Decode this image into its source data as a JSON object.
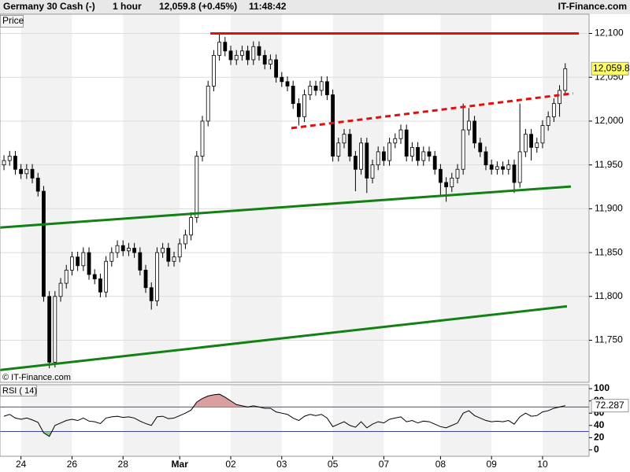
{
  "chart_data": {
    "type": "candlestick",
    "title": "Germany 30 Cash (-)",
    "interval": "1 hour",
    "quote": "12,059.8 (+0.45%)",
    "time": "11:48:42",
    "source": "IT-Finance.com",
    "pane_label": "Price",
    "watermark": "© IT-Finance.com",
    "up_color": "#ffffff",
    "down_color": "#000000",
    "candles": [
      [
        11950,
        11961,
        11944,
        11955
      ],
      [
        11955,
        11966,
        11949,
        11960
      ],
      [
        11960,
        11966,
        11939,
        11945
      ],
      [
        11945,
        11951,
        11934,
        11940
      ],
      [
        11940,
        11951,
        11934,
        11945
      ],
      [
        11945,
        11951,
        11929,
        11935
      ],
      [
        11935,
        11941,
        11914,
        11920
      ],
      [
        11920,
        11926,
        11794,
        11800
      ],
      [
        11800,
        11806,
        11718,
        11725
      ],
      [
        11725,
        11806,
        11719,
        11800
      ],
      [
        11800,
        11821,
        11794,
        11815
      ],
      [
        11815,
        11836,
        11809,
        11830
      ],
      [
        11830,
        11851,
        11824,
        11845
      ],
      [
        11845,
        11851,
        11829,
        11835
      ],
      [
        11835,
        11856,
        11829,
        11850
      ],
      [
        11850,
        11856,
        11819,
        11825
      ],
      [
        11825,
        11831,
        11814,
        11820
      ],
      [
        11820,
        11826,
        11799,
        11805
      ],
      [
        11805,
        11846,
        11799,
        11840
      ],
      [
        11840,
        11856,
        11834,
        11850
      ],
      [
        11850,
        11864,
        11844,
        11858
      ],
      [
        11858,
        11864,
        11846,
        11852
      ],
      [
        11852,
        11861,
        11846,
        11855
      ],
      [
        11855,
        11861,
        11844,
        11850
      ],
      [
        11850,
        11856,
        11824,
        11830
      ],
      [
        11830,
        11836,
        11804,
        11810
      ],
      [
        11810,
        11816,
        11785,
        11795
      ],
      [
        11795,
        11856,
        11789,
        11850
      ],
      [
        11850,
        11861,
        11844,
        11855
      ],
      [
        11855,
        11861,
        11834,
        11840
      ],
      [
        11840,
        11851,
        11834,
        11845
      ],
      [
        11845,
        11866,
        11839,
        11860
      ],
      [
        11860,
        11876,
        11854,
        11870
      ],
      [
        11870,
        11896,
        11864,
        11890
      ],
      [
        11890,
        11966,
        11884,
        11960
      ],
      [
        11960,
        12006,
        11954,
        12000
      ],
      [
        12000,
        12046,
        11994,
        12040
      ],
      [
        12040,
        12081,
        12034,
        12075
      ],
      [
        12075,
        12100,
        12069,
        12090
      ],
      [
        12090,
        12096,
        12074,
        12080
      ],
      [
        12080,
        12086,
        12064,
        12070
      ],
      [
        12070,
        12081,
        12064,
        12075
      ],
      [
        12075,
        12086,
        12069,
        12080
      ],
      [
        12080,
        12086,
        12064,
        12070
      ],
      [
        12070,
        12091,
        12064,
        12085
      ],
      [
        12085,
        12091,
        12069,
        12075
      ],
      [
        12075,
        12081,
        12059,
        12065
      ],
      [
        12065,
        12076,
        12059,
        12070
      ],
      [
        12070,
        12076,
        12044,
        12050
      ],
      [
        12050,
        12056,
        12039,
        12045
      ],
      [
        12045,
        12051,
        12034,
        12040
      ],
      [
        12040,
        12046,
        12014,
        12020
      ],
      [
        12020,
        12026,
        11995,
        12005
      ],
      [
        12005,
        12036,
        11999,
        12030
      ],
      [
        12030,
        12046,
        12024,
        12040
      ],
      [
        12040,
        12046,
        12029,
        12035
      ],
      [
        12035,
        12051,
        12029,
        12045
      ],
      [
        12045,
        12051,
        12024,
        12030
      ],
      [
        12030,
        12036,
        11954,
        11960
      ],
      [
        11960,
        11981,
        11954,
        11975
      ],
      [
        11975,
        11991,
        11969,
        11985
      ],
      [
        11985,
        11991,
        11954,
        11960
      ],
      [
        11960,
        11966,
        11920,
        11945
      ],
      [
        11945,
        11981,
        11939,
        11975
      ],
      [
        11975,
        11981,
        11918,
        11935
      ],
      [
        11935,
        11956,
        11929,
        11950
      ],
      [
        11950,
        11971,
        11944,
        11965
      ],
      [
        11965,
        11971,
        11949,
        11955
      ],
      [
        11955,
        11981,
        11949,
        11975
      ],
      [
        11975,
        11986,
        11969,
        11980
      ],
      [
        11980,
        11996,
        11974,
        11990
      ],
      [
        11990,
        11996,
        11954,
        11960
      ],
      [
        11960,
        11976,
        11954,
        11970
      ],
      [
        11970,
        11976,
        11949,
        11955
      ],
      [
        11955,
        11971,
        11949,
        11965
      ],
      [
        11965,
        11971,
        11954,
        11960
      ],
      [
        11960,
        11966,
        11939,
        11945
      ],
      [
        11945,
        11951,
        11915,
        11930
      ],
      [
        11930,
        11936,
        11908,
        11925
      ],
      [
        11925,
        11941,
        11919,
        11935
      ],
      [
        11935,
        11951,
        11929,
        11945
      ],
      [
        11945,
        12020,
        11939,
        11990
      ],
      [
        11990,
        12015,
        11984,
        12000
      ],
      [
        12000,
        12006,
        11969,
        11975
      ],
      [
        11975,
        11981,
        11959,
        11965
      ],
      [
        11965,
        11971,
        11944,
        11950
      ],
      [
        11950,
        11956,
        11939,
        11945
      ],
      [
        11945,
        11954,
        11939,
        11948
      ],
      [
        11948,
        11954,
        11939,
        11945
      ],
      [
        11945,
        11956,
        11939,
        11950
      ],
      [
        11950,
        11956,
        11918,
        11930
      ],
      [
        11930,
        12020,
        11924,
        11965
      ],
      [
        11965,
        11991,
        11959,
        11985
      ],
      [
        11985,
        11991,
        11955,
        11970
      ],
      [
        11970,
        11981,
        11964,
        11975
      ],
      [
        11975,
        12001,
        11969,
        11995
      ],
      [
        11995,
        12011,
        11989,
        12005
      ],
      [
        12005,
        12026,
        11999,
        12020
      ],
      [
        12020,
        12041,
        12005,
        12035
      ],
      [
        12035,
        12066,
        12029,
        12059.8
      ]
    ],
    "xlim": [
      -0.7,
      103.2
    ],
    "xticks": [
      {
        "value": 3,
        "label": "24"
      },
      {
        "value": 12,
        "label": "26"
      },
      {
        "value": 21,
        "label": "28"
      },
      {
        "value": 31,
        "label": "Mar"
      },
      {
        "value": 40,
        "label": "02"
      },
      {
        "value": 49,
        "label": "03"
      },
      {
        "value": 58,
        "label": "05"
      },
      {
        "value": 67,
        "label": "07"
      },
      {
        "value": 77,
        "label": "08"
      },
      {
        "value": 86,
        "label": "09"
      },
      {
        "value": 95,
        "label": "10"
      }
    ],
    "ylim": [
      11702,
      12122
    ],
    "yticks": [
      {
        "value": 11750,
        "label": "11,750"
      },
      {
        "value": 11800,
        "label": "11,800"
      },
      {
        "value": 11850,
        "label": "11,850"
      },
      {
        "value": 11900,
        "label": "11,900"
      },
      {
        "value": 11950,
        "label": "11,950"
      },
      {
        "value": 12000,
        "label": "12,000"
      },
      {
        "value": 12050,
        "label": "12,050"
      },
      {
        "value": 12100,
        "label": "12,100"
      }
    ],
    "last_price": {
      "value": 12059.8,
      "label": "12,059.8"
    },
    "trend_lines": [
      {
        "x": [
          36.4,
          101.4
        ],
        "y": [
          12100,
          12100
        ],
        "color": "#e01010",
        "dashed": false
      },
      {
        "x": [
          50.7,
          100.4
        ],
        "y": [
          11992,
          12031.6
        ],
        "color": "#e01010",
        "dashed": true
      },
      {
        "x": [
          -0.7,
          100
        ],
        "y": [
          11878.6,
          11925.4
        ],
        "color": "#128012",
        "dashed": false
      },
      {
        "x": [
          -0.7,
          99.3
        ],
        "y": [
          11716,
          11788.7
        ],
        "color": "#128012",
        "dashed": false
      }
    ],
    "indicator": {
      "name": "RSI ( 14)",
      "color": "#000000",
      "ylim": [
        -10.4,
        106.5
      ],
      "yticks": [
        0,
        20,
        40,
        60,
        80,
        100
      ],
      "levels": [
        30,
        70
      ],
      "values": [
        55,
        58,
        52,
        50,
        52,
        49,
        45,
        28,
        22,
        40,
        44,
        48,
        50,
        48,
        52,
        47,
        46,
        43,
        52,
        54,
        55,
        53,
        54,
        52,
        47,
        43,
        40,
        54,
        55,
        51,
        52,
        56,
        60,
        65,
        78,
        84,
        88,
        90,
        91,
        86,
        80,
        74,
        72,
        70,
        72,
        70,
        68,
        68,
        62,
        60,
        58,
        52,
        48,
        55,
        58,
        56,
        58,
        52,
        38,
        42,
        46,
        40,
        37,
        46,
        36,
        42,
        46,
        44,
        50,
        52,
        54,
        46,
        48,
        44,
        47,
        46,
        42,
        38,
        36,
        40,
        44,
        60,
        64,
        56,
        52,
        48,
        46,
        47,
        46,
        48,
        42,
        54,
        60,
        55,
        56,
        62,
        64,
        68,
        70,
        72.287
      ]
    }
  }
}
